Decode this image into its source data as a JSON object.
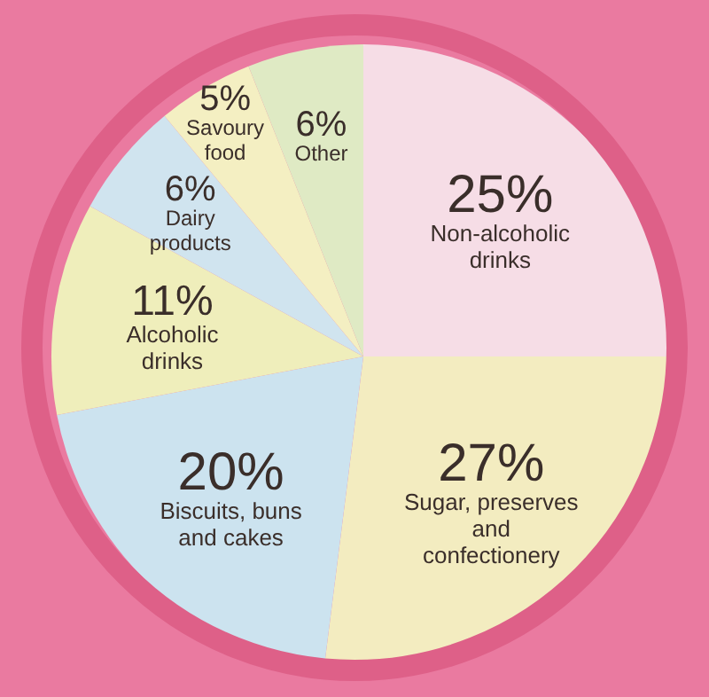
{
  "chart_data": {
    "type": "pie",
    "categories": [
      "Non-alcoholic drinks",
      "Sugar, preserves and confectionery",
      "Biscuits, buns and cakes",
      "Alcoholic drinks",
      "Dairy products",
      "Savoury food",
      "Other"
    ],
    "values": [
      25,
      27,
      20,
      11,
      6,
      5,
      6
    ],
    "colors": [
      "#f6dde6",
      "#f3ecc0",
      "#cce3ef",
      "#efeebb",
      "#d0e4ef",
      "#f4efc2",
      "#dfeac4"
    ],
    "value_labels": [
      "25%",
      "27%",
      "20%",
      "11%",
      "6%",
      "5%",
      "6%"
    ]
  }
}
